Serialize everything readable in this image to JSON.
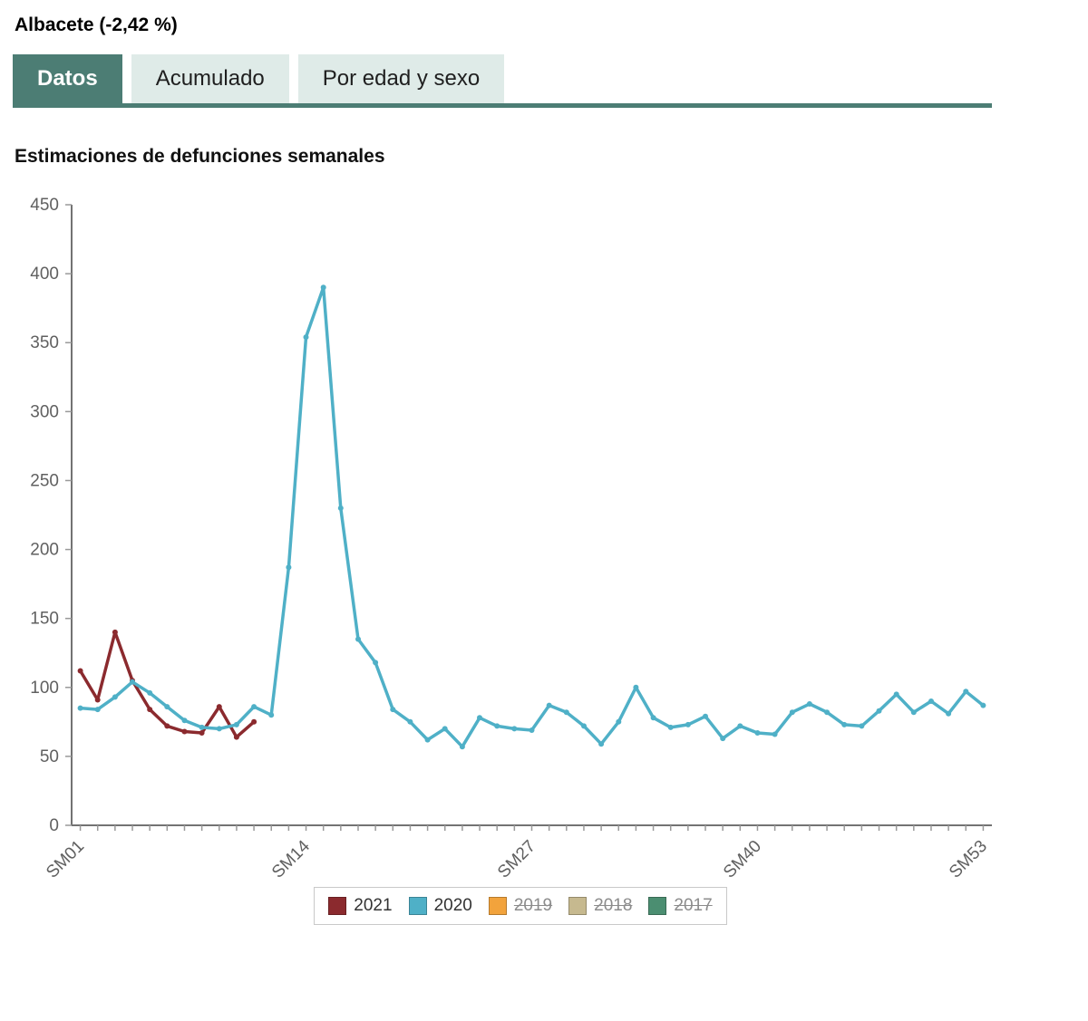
{
  "header": {
    "title": "Albacete (-2,42 %)"
  },
  "tabs": [
    {
      "label": "Datos",
      "active": true
    },
    {
      "label": "Acumulado",
      "active": false
    },
    {
      "label": "Por edad y sexo",
      "active": false
    }
  ],
  "theme": {
    "tab_active_bg": "#4c7d74",
    "tab_inactive_bg": "#dfebe8",
    "axis_color": "#737373",
    "axis_text_color": "#606060"
  },
  "chart_data": {
    "type": "line",
    "title": "Estimaciones de defunciones semanales",
    "xlabel": "",
    "ylabel": "",
    "ylim": [
      0,
      450
    ],
    "y_ticks": [
      0,
      50,
      100,
      150,
      200,
      250,
      300,
      350,
      400,
      450
    ],
    "weeks": 53,
    "grid": false,
    "legend_position": "bottom",
    "x_ticks": [
      {
        "week": 1,
        "label": "SM01"
      },
      {
        "week": 14,
        "label": "SM14"
      },
      {
        "week": 27,
        "label": "SM27"
      },
      {
        "week": 40,
        "label": "SM40"
      },
      {
        "week": 53,
        "label": "SM53"
      }
    ],
    "series": [
      {
        "name": "2021",
        "color": "#8b2a2e",
        "visible": true,
        "values": [
          112,
          91,
          140,
          105,
          84,
          72,
          68,
          67,
          86,
          64,
          75
        ]
      },
      {
        "name": "2020",
        "color": "#4fb0c7",
        "visible": true,
        "values": [
          85,
          84,
          93,
          104,
          96,
          86,
          76,
          71,
          70,
          73,
          86,
          80,
          187,
          354,
          390,
          230,
          135,
          118,
          84,
          75,
          62,
          70,
          57,
          78,
          72,
          70,
          69,
          87,
          82,
          72,
          59,
          75,
          100,
          78,
          71,
          73,
          79,
          63,
          72,
          67,
          66,
          82,
          88,
          82,
          73,
          72,
          83,
          95,
          82,
          90,
          81,
          97,
          87
        ]
      },
      {
        "name": "2019",
        "color": "#f2a33c",
        "visible": false,
        "values": []
      },
      {
        "name": "2018",
        "color": "#c6b98f",
        "visible": false,
        "values": []
      },
      {
        "name": "2017",
        "color": "#4b8e71",
        "visible": false,
        "values": []
      }
    ]
  }
}
